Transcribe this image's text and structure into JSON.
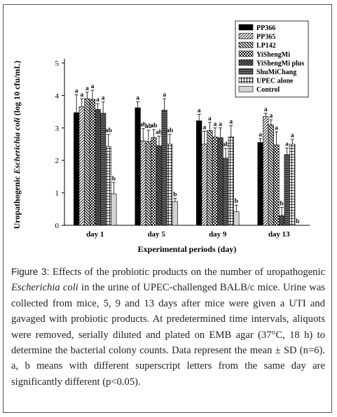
{
  "chart_data": {
    "type": "bar",
    "ylabel_prefix": "Uropathogenic ",
    "ylabel_italic": "Escherichia coli",
    "ylabel_suffix": " (log 10 cfu/mL)",
    "xlabel": "Experimental periods (day)",
    "ylim": [
      0,
      5
    ],
    "yticks": [
      "0",
      "1",
      "2",
      "3",
      "4",
      "5"
    ],
    "categories": [
      "day 1",
      "day 5",
      "day 9",
      "day 13"
    ],
    "legend_position": "top-right",
    "series": [
      {
        "name": "PP366",
        "values": [
          3.47,
          3.62,
          3.22,
          2.55
        ],
        "errors": [
          0.55,
          0.18,
          0.2,
          0.12
        ],
        "letters": [
          "a",
          "a",
          "a",
          "a"
        ]
      },
      {
        "name": "PP365",
        "values": [
          3.65,
          2.6,
          2.5,
          3.35
        ],
        "errors": [
          0.25,
          0.38,
          0.4,
          0.1
        ],
        "letters": [
          "a",
          "ab",
          "a",
          "a"
        ]
      },
      {
        "name": "LP142",
        "values": [
          3.9,
          2.58,
          2.92,
          3.1
        ],
        "errors": [
          0.2,
          0.35,
          0.25,
          0.15
        ],
        "letters": [
          "a",
          "ab",
          "a",
          "a"
        ]
      },
      {
        "name": "YiShengMi",
        "values": [
          3.88,
          2.7,
          2.72,
          2.48
        ],
        "errors": [
          0.28,
          0.25,
          0.28,
          0.4
        ],
        "letters": [
          "a",
          "ab",
          "a",
          "a"
        ]
      },
      {
        "name": "YiShengMi plus",
        "values": [
          3.57,
          2.45,
          2.7,
          0.3
        ],
        "errors": [
          0.18,
          0.3,
          0.3,
          0.25
        ],
        "letters": [
          "a",
          "ab",
          "a",
          "b"
        ]
      },
      {
        "name": "ShuMiChang",
        "values": [
          3.45,
          3.55,
          2.07,
          2.18
        ],
        "errors": [
          0.35,
          0.35,
          0.3,
          0.2
        ],
        "letters": [
          "a",
          "a",
          "ab",
          "a"
        ]
      },
      {
        "name": "UPEC alone",
        "values": [
          2.42,
          2.5,
          2.72,
          2.5
        ],
        "errors": [
          0.38,
          0.3,
          0.35,
          0.15
        ],
        "letters": [
          "ab",
          "ab",
          "a",
          "a"
        ]
      },
      {
        "name": "Control",
        "values": [
          0.97,
          0.73,
          0.42,
          0
        ],
        "errors": [
          0.35,
          0.1,
          0.2,
          0
        ],
        "letters": [
          "b",
          "b",
          "b",
          "b"
        ]
      }
    ]
  },
  "caption": {
    "label": "Figure 3:",
    "text_1": " Effects of the probiotic products on the number of uropathogenic ",
    "italic": "Escherichia coli",
    "text_2": " in the urine of UPEC-challenged BALB/c mice. Urine was collected from mice, 5, 9 and 13 days after mice were given a UTI and gavaged with probiotic products. At predetermined time intervals, aliquots were removed, serially diluted and plated on EMB agar (37°C, 18 h) to determine the bacterial colony counts. Data represent the mean ± SD (n=6). a, b means with different superscript letters from the same day are significantly different (p<0.05)."
  }
}
